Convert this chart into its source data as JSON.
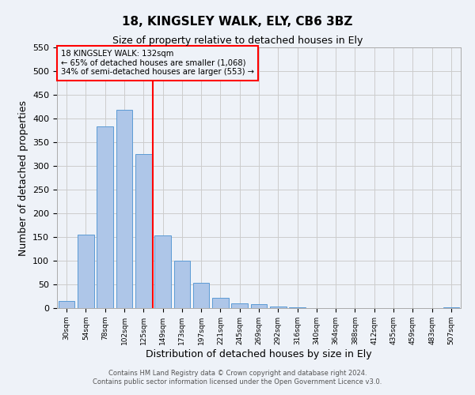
{
  "title": "18, KINGSLEY WALK, ELY, CB6 3BZ",
  "subtitle": "Size of property relative to detached houses in Ely",
  "xlabel": "Distribution of detached houses by size in Ely",
  "ylabel": "Number of detached properties",
  "bin_labels": [
    "30sqm",
    "54sqm",
    "78sqm",
    "102sqm",
    "125sqm",
    "149sqm",
    "173sqm",
    "197sqm",
    "221sqm",
    "245sqm",
    "269sqm",
    "292sqm",
    "316sqm",
    "340sqm",
    "364sqm",
    "388sqm",
    "412sqm",
    "435sqm",
    "459sqm",
    "483sqm",
    "507sqm"
  ],
  "bar_values": [
    15,
    155,
    383,
    418,
    325,
    153,
    100,
    53,
    22,
    10,
    8,
    3,
    1,
    0,
    0,
    0,
    0,
    0,
    0,
    0,
    2
  ],
  "bar_color": "#aec6e8",
  "bar_edgecolor": "#5b9bd5",
  "vline_x": 4,
  "vline_color": "red",
  "annotation_title": "18 KINGSLEY WALK: 132sqm",
  "annotation_line1": "← 65% of detached houses are smaller (1,068)",
  "annotation_line2": "34% of semi-detached houses are larger (553) →",
  "annotation_box_edgecolor": "red",
  "ylim": [
    0,
    550
  ],
  "yticks": [
    0,
    50,
    100,
    150,
    200,
    250,
    300,
    350,
    400,
    450,
    500,
    550
  ],
  "grid_color": "#cccccc",
  "bg_color": "#eef2f8",
  "footer1": "Contains HM Land Registry data © Crown copyright and database right 2024.",
  "footer2": "Contains public sector information licensed under the Open Government Licence v3.0."
}
